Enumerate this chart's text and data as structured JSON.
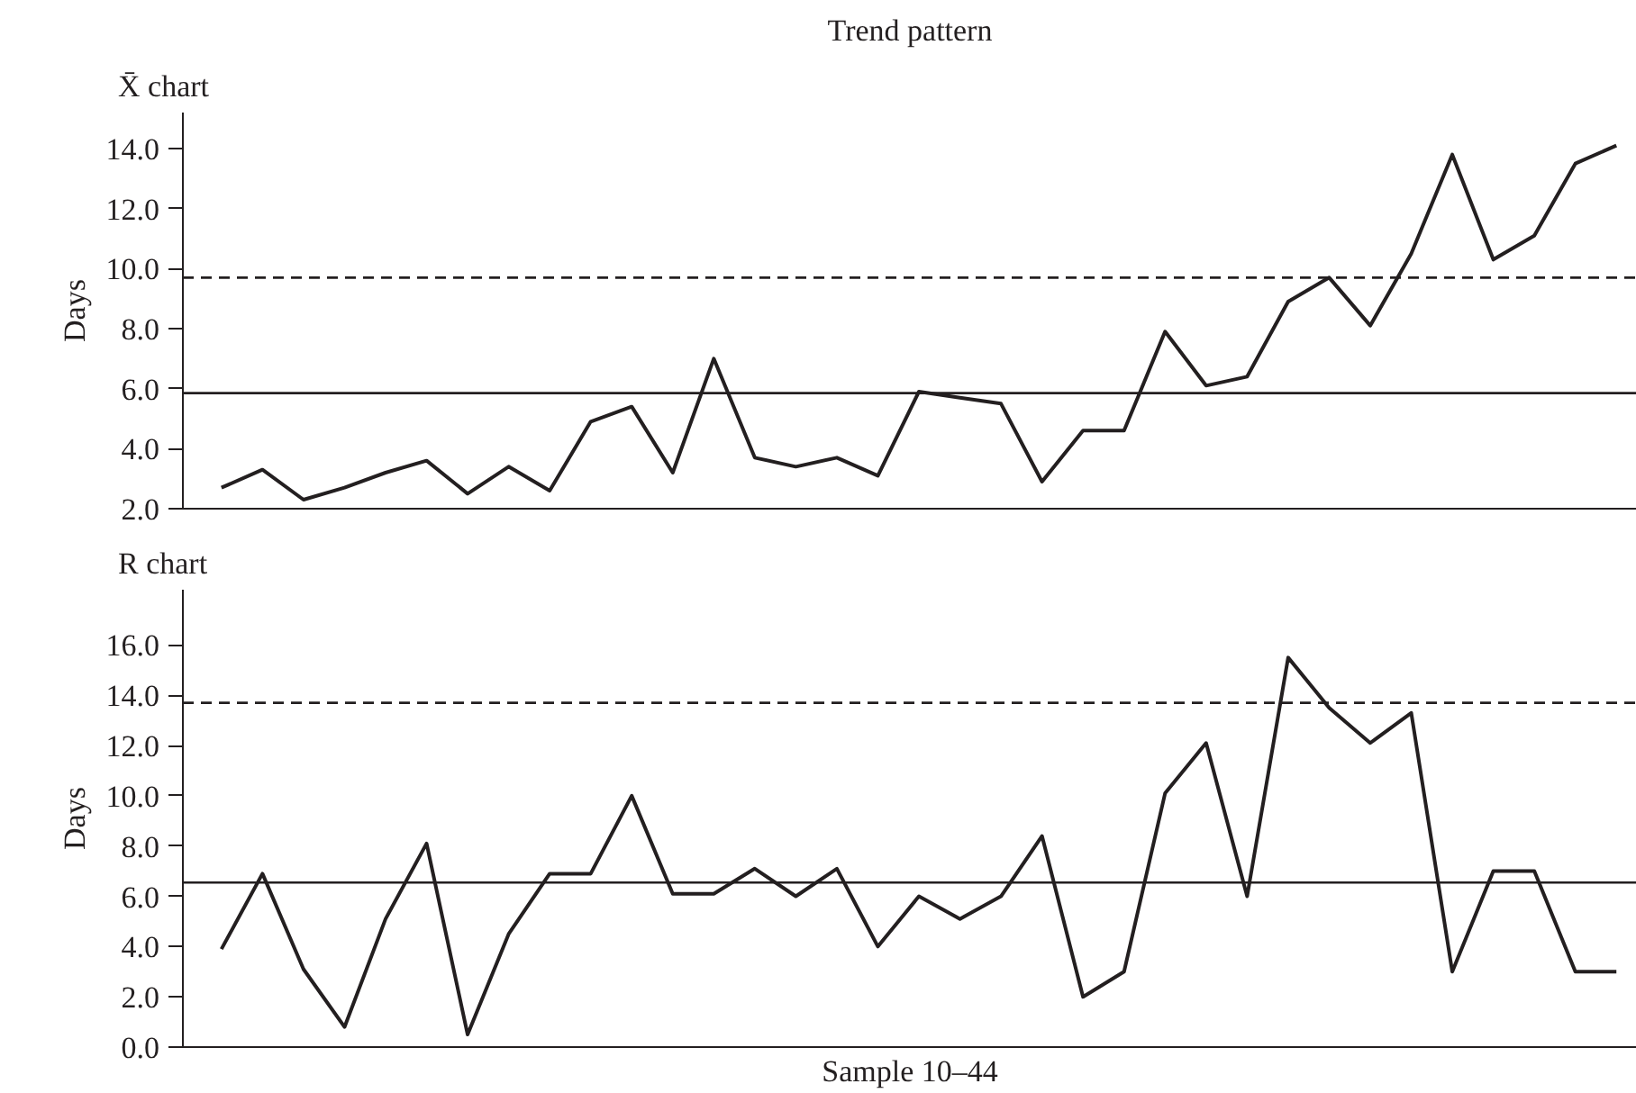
{
  "chart_data": [
    {
      "type": "line",
      "title": "Trend pattern",
      "subtitle": "X̄ chart",
      "ylabel": "Days",
      "categories": [
        null,
        null,
        null,
        null,
        null,
        null,
        null,
        null,
        null,
        null,
        null,
        null,
        null,
        null,
        null,
        null,
        null,
        null,
        null,
        null,
        null,
        null,
        null,
        null,
        null,
        null,
        null,
        null,
        null,
        null,
        null,
        null,
        null,
        null,
        null
      ],
      "series": [
        {
          "color": "#231f20",
          "values": [
            2.7,
            3.3,
            2.3,
            2.7,
            3.2,
            3.6,
            2.5,
            3.4,
            2.6,
            4.9,
            5.4,
            3.2,
            7.0,
            3.7,
            3.4,
            3.7,
            3.1,
            5.9,
            5.7,
            5.5,
            2.9,
            4.6,
            4.6,
            7.9,
            6.1,
            6.4,
            8.9,
            9.7,
            8.1,
            10.5,
            13.8,
            10.3,
            11.1,
            13.5,
            14.1
          ]
        }
      ],
      "ylim": [
        2.0,
        15.2
      ],
      "yticks": [
        {
          "value": 2,
          "label": "2.0"
        },
        {
          "value": 4,
          "label": "4.0"
        },
        {
          "value": 6,
          "label": "6.0"
        },
        {
          "value": 8,
          "label": "8.0"
        },
        {
          "value": 10,
          "label": "10.0"
        },
        {
          "value": 12,
          "label": "12.0"
        },
        {
          "value": 14,
          "label": "14.0"
        }
      ],
      "ref_lines": [
        {
          "axis": "y",
          "value": 5.85,
          "color": "#231f20",
          "line_style": "solid"
        },
        {
          "axis": "y",
          "value": 9.7,
          "color": "#231f20",
          "line_style": "dashed"
        }
      ],
      "grid": false,
      "marker": "none",
      "line_style": "solid",
      "tick_labels": "y"
    },
    {
      "type": "line",
      "subtitle": "R chart",
      "xlabel": "Sample 10–44",
      "ylabel": "Days",
      "categories": [
        null,
        null,
        null,
        null,
        null,
        null,
        null,
        null,
        null,
        null,
        null,
        null,
        null,
        null,
        null,
        null,
        null,
        null,
        null,
        null,
        null,
        null,
        null,
        null,
        null,
        null,
        null,
        null,
        null,
        null,
        null,
        null,
        null,
        null,
        null
      ],
      "series": [
        {
          "color": "#231f20",
          "values": [
            3.9,
            6.9,
            3.1,
            0.8,
            5.1,
            8.1,
            0.5,
            4.5,
            6.9,
            6.9,
            10.0,
            6.1,
            6.1,
            7.1,
            6.0,
            7.1,
            4.0,
            6.0,
            5.1,
            6.0,
            8.4,
            2.0,
            3.0,
            10.1,
            12.1,
            6.0,
            15.5,
            13.5,
            12.1,
            13.3,
            3.0,
            7.0,
            7.0,
            3.0,
            3.0
          ]
        }
      ],
      "ylim": [
        0.0,
        18.2
      ],
      "yticks": [
        {
          "value": 0,
          "label": "0.0"
        },
        {
          "value": 2,
          "label": "2.0"
        },
        {
          "value": 4,
          "label": "4.0"
        },
        {
          "value": 6,
          "label": "6.0"
        },
        {
          "value": 8,
          "label": "8.0"
        },
        {
          "value": 10,
          "label": "10.0"
        },
        {
          "value": 12,
          "label": "12.0"
        },
        {
          "value": 14,
          "label": "14.0"
        },
        {
          "value": 16,
          "label": "16.0"
        }
      ],
      "ref_lines": [
        {
          "axis": "y",
          "value": 6.55,
          "color": "#231f20",
          "line_style": "solid"
        },
        {
          "axis": "y",
          "value": 13.7,
          "color": "#231f20",
          "line_style": "dashed"
        }
      ],
      "grid": false,
      "marker": "none",
      "line_style": "solid",
      "tick_labels": "y"
    }
  ]
}
